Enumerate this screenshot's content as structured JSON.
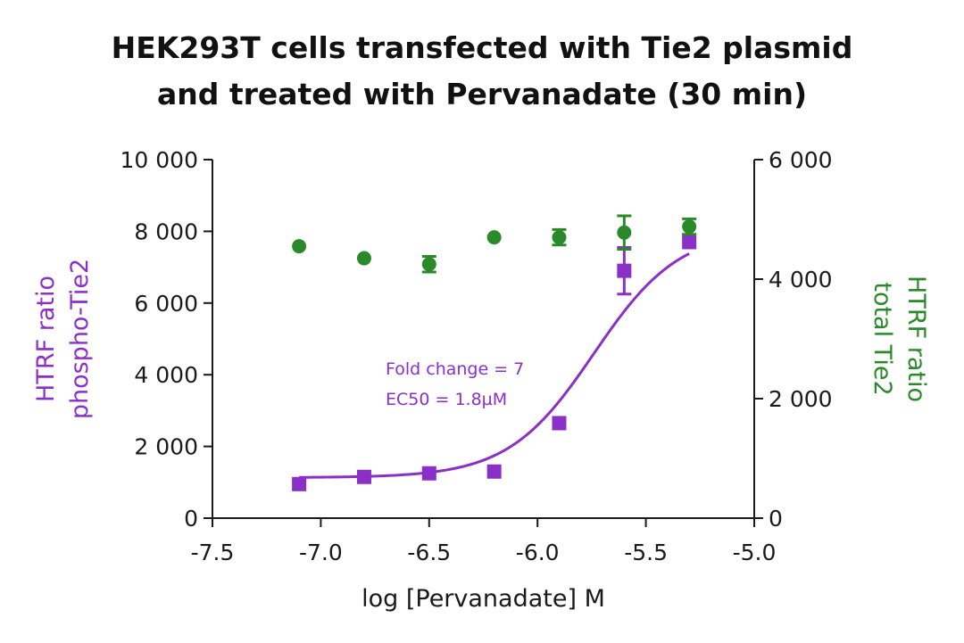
{
  "chart_data": {
    "type": "scatter",
    "title_lines": [
      "HEK293T cells transfected with Tie2 plasmid",
      "and treated with Pervanadate (30 min)"
    ],
    "xlabel": "log [Pervanadate] M",
    "ylabel_left": [
      "HTRF ratio",
      "phospho-Tie2"
    ],
    "ylabel_right": [
      "HTRF ratio",
      "total Tie2"
    ],
    "xlim": [
      -7.5,
      -5.0
    ],
    "ylim_left": [
      0,
      10000
    ],
    "ylim_right": [
      0,
      6000
    ],
    "x_ticks": [
      -7.5,
      -7.0,
      -6.5,
      -6.0,
      -5.5,
      -5.0
    ],
    "x_tick_labels": [
      "-7.5",
      "-7.0",
      "-6.5",
      "-6.0",
      "-5.5",
      "-5.0"
    ],
    "y_left_ticks": [
      0,
      2000,
      4000,
      6000,
      8000,
      10000
    ],
    "y_left_tick_labels": [
      "0",
      "2 000",
      "4 000",
      "6 000",
      "8 000",
      "10 000"
    ],
    "y_right_ticks": [
      0,
      2000,
      4000,
      6000
    ],
    "y_right_tick_labels": [
      "0",
      "2 000",
      "4 000",
      "6 000"
    ],
    "annotations": [
      "Fold change = 7",
      "EC50 = 1.8µM"
    ],
    "series": [
      {
        "name": "phospho-Tie2",
        "axis": "left",
        "marker": "square",
        "color": "#8B2FC9",
        "x": [
          -7.1,
          -6.8,
          -6.5,
          -6.2,
          -5.9,
          -5.6,
          -5.3
        ],
        "y": [
          950,
          1150,
          1250,
          1300,
          2650,
          6900,
          7700
        ],
        "err": [
          0,
          0,
          0,
          0,
          0,
          650,
          0
        ]
      },
      {
        "name": "total Tie2",
        "axis": "right",
        "marker": "circle",
        "color": "#2A8A2A",
        "x": [
          -7.1,
          -6.8,
          -6.5,
          -6.2,
          -5.9,
          -5.6,
          -5.3
        ],
        "y": [
          4550,
          4350,
          4250,
          4700,
          4700,
          4780,
          4880
        ],
        "err": [
          0,
          0,
          130,
          0,
          130,
          280,
          130
        ]
      }
    ],
    "fit_curve": {
      "series": "phospho-Tie2",
      "model": "4PL",
      "bottom": 1130,
      "top": 8050,
      "log_ec50": -5.74,
      "hill": 2.2,
      "color": "#8B2FC9"
    }
  }
}
